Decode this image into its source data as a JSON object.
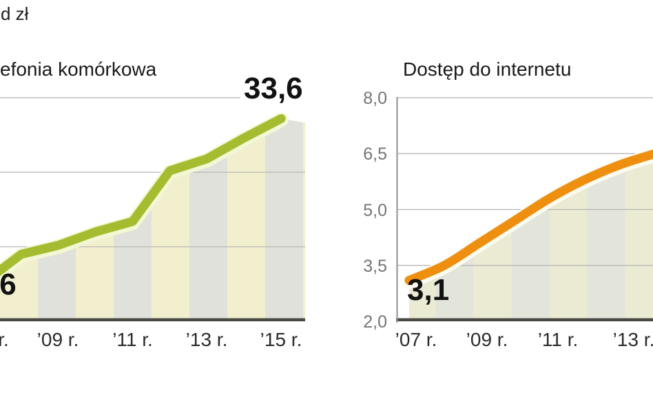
{
  "unit_label": "d zł",
  "chart_data": [
    {
      "id": "telefonia",
      "type": "line",
      "title": "efonia komórkowa",
      "x": [
        2007,
        2008,
        2009,
        2010,
        2011,
        2012,
        2013,
        2014,
        2015
      ],
      "values": [
        22.6,
        24.5,
        25.1,
        26.0,
        26.7,
        30.1,
        30.9,
        32.3,
        33.6
      ],
      "ylim": [
        20,
        35
      ],
      "gridline_values": [
        25,
        30,
        35
      ],
      "xtick_labels": [
        "r.",
        "’09 r.",
        "’11 r.",
        "’13 r.",
        "’15 r."
      ],
      "ytick_labels": [],
      "ytick_values": [],
      "start_value_label": ",6",
      "end_value_label": "33,6",
      "line_color": "#a6bc30",
      "halo_color": "#f3f7d4",
      "stripe_colors": [
        "#f1efce",
        "#e1e1db"
      ],
      "smooth": false,
      "legend": "none",
      "grid": "horizontal"
    },
    {
      "id": "internet",
      "type": "line",
      "title": "Dostęp do internetu",
      "x": [
        2007,
        2008,
        2009,
        2010,
        2011,
        2012,
        2013,
        2014
      ],
      "values": [
        3.1,
        3.5,
        4.1,
        4.7,
        5.3,
        5.8,
        6.2,
        6.5
      ],
      "ylim": [
        2.0,
        8.0
      ],
      "gridline_values": [
        3.5,
        5.0,
        6.5,
        8.0
      ],
      "xtick_labels": [
        "’07 r.",
        "’09 r.",
        "’11 r.",
        "’13 r."
      ],
      "ytick_labels": [
        "2,0",
        "3,5",
        "5,0",
        "6,5",
        "8,0"
      ],
      "ytick_values": [
        2.0,
        3.5,
        5.0,
        6.5,
        8.0
      ],
      "start_value_label": "3,1",
      "end_value_label": "",
      "line_color": "#ef8f10",
      "halo_color": "#fbfbf1",
      "stripe_colors": [
        "#ebead3",
        "#e3e5da"
      ],
      "smooth": true,
      "legend": "none",
      "grid": "horizontal"
    }
  ],
  "colors": {
    "gridline": "#b3b3b3",
    "baseline": "#4a4a44",
    "axis_line": "#8f8f8f",
    "xtick_text": "#2b2b2b",
    "ytick_text": "#757575",
    "background": "#ffffff"
  }
}
